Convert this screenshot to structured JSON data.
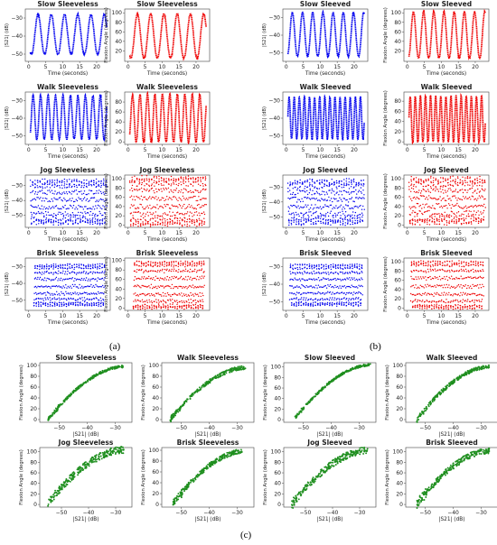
{
  "panel_labels": [
    "(a)",
    "(b)",
    "(c)"
  ],
  "series_colors": {
    "s21": "#0000ee",
    "flexion": "#ee0000",
    "scatter": "#1f8f1f"
  },
  "chart_data": [
    {
      "type": "line",
      "group": "a",
      "row": 0,
      "col": 0,
      "title": "Slow Sleeveless",
      "xlabel": "Time (seconds)",
      "ylabel": "|S21| (dB)",
      "xticks": [
        0,
        5,
        10,
        15,
        20
      ],
      "yticks": [
        -50,
        -40,
        -30
      ],
      "xlim": [
        -1,
        24
      ],
      "ylim": [
        -54,
        -25
      ],
      "period": 3.9,
      "phase": 0.8,
      "noise": 0.2,
      "t_end": 23,
      "series": [
        {
          "signal": "s21",
          "ymin": -50,
          "ymax": -28
        }
      ]
    },
    {
      "type": "line",
      "group": "a",
      "row": 0,
      "col": 1,
      "title": "Slow Sleeveless",
      "xlabel": "Time (seconds)",
      "ylabel": "Flexion Angle (degrees)",
      "xticks": [
        0,
        5,
        10,
        15,
        20
      ],
      "yticks": [
        20,
        40,
        60,
        80,
        100
      ],
      "xlim": [
        -1,
        24
      ],
      "ylim": [
        -2,
        108
      ],
      "period": 3.9,
      "phase": 0.8,
      "noise": 0.2,
      "t_end": 23,
      "series": [
        {
          "signal": "flexion",
          "ymin": 5,
          "ymax": 98
        }
      ]
    },
    {
      "type": "line",
      "group": "b",
      "row": 0,
      "col": 0,
      "title": "Slow Sleeved",
      "xlabel": "Time (seconds)",
      "ylabel": "|S21| (dB)",
      "xticks": [
        0,
        5,
        10,
        15,
        20
      ],
      "yticks": [
        -50,
        -40,
        -30
      ],
      "xlim": [
        -1,
        24
      ],
      "ylim": [
        -55,
        -25
      ],
      "period": 3.0,
      "phase": 0.3,
      "noise": 0.2,
      "t_end": 23,
      "series": [
        {
          "signal": "s21",
          "ymin": -52,
          "ymax": -27
        }
      ]
    },
    {
      "type": "line",
      "group": "b",
      "row": 0,
      "col": 1,
      "title": "Slow Sleeved",
      "xlabel": "Time (seconds)",
      "ylabel": "Flexion Angle (degrees)",
      "xticks": [
        0,
        5,
        10,
        15,
        20
      ],
      "yticks": [
        20,
        40,
        60,
        80,
        100
      ],
      "xlim": [
        -1,
        24
      ],
      "ylim": [
        -2,
        108
      ],
      "period": 3.0,
      "phase": 0.3,
      "noise": 0.2,
      "t_end": 23,
      "series": [
        {
          "signal": "flexion",
          "ymin": 5,
          "ymax": 102
        }
      ]
    },
    {
      "type": "line",
      "group": "a",
      "row": 1,
      "col": 0,
      "title": "Walk Sleeveless",
      "xlabel": "Time (seconds)",
      "ylabel": "|S21| (dB)",
      "xticks": [
        0,
        5,
        10,
        15,
        20
      ],
      "yticks": [
        -50,
        -40,
        -30
      ],
      "xlim": [
        -1,
        24
      ],
      "ylim": [
        -55,
        -25
      ],
      "period": 2.2,
      "phase": 0.2,
      "noise": 0.3,
      "t_end": 23,
      "series": [
        {
          "signal": "s21",
          "ymin": -52,
          "ymax": -27
        }
      ]
    },
    {
      "type": "line",
      "group": "a",
      "row": 1,
      "col": 1,
      "title": "Walk Sleeveless",
      "xlabel": "Time (seconds)",
      "ylabel": "Flexion Angle (degrees)",
      "xticks": [
        0,
        5,
        10,
        15,
        20
      ],
      "yticks": [
        0,
        20,
        40,
        60,
        80
      ],
      "xlim": [
        -1,
        24
      ],
      "ylim": [
        -5,
        100
      ],
      "period": 2.2,
      "phase": 0.2,
      "noise": 0.3,
      "t_end": 23,
      "series": [
        {
          "signal": "flexion",
          "ymin": 0,
          "ymax": 95
        }
      ]
    },
    {
      "type": "line",
      "group": "b",
      "row": 1,
      "col": 0,
      "title": "Walk Sleeved",
      "xlabel": "Time (seconds)",
      "ylabel": "|S21| (dB)",
      "xticks": [
        0,
        5,
        10,
        15,
        20
      ],
      "yticks": [
        -50,
        -40,
        -30
      ],
      "xlim": [
        -1,
        24
      ],
      "ylim": [
        -55,
        -25
      ],
      "period": 1.5,
      "phase": 0.1,
      "noise": 0.3,
      "t_end": 23,
      "series": [
        {
          "signal": "s21",
          "ymin": -52,
          "ymax": -28
        }
      ]
    },
    {
      "type": "line",
      "group": "b",
      "row": 1,
      "col": 1,
      "title": "Walk Sleeved",
      "xlabel": "Time (seconds)",
      "ylabel": "Flexion Angle (degrees)",
      "xticks": [
        0,
        5,
        10,
        15,
        20
      ],
      "yticks": [
        0,
        20,
        40,
        60,
        80
      ],
      "xlim": [
        -1,
        24
      ],
      "ylim": [
        -5,
        98
      ],
      "period": 1.5,
      "phase": 0.1,
      "noise": 0.3,
      "t_end": 23,
      "series": [
        {
          "signal": "flexion",
          "ymin": 0,
          "ymax": 90
        }
      ]
    },
    {
      "type": "line",
      "group": "a",
      "row": 2,
      "col": 0,
      "title": "Jog Sleeveless",
      "xlabel": "Time (seconds)",
      "ylabel": "|S21| (dB)",
      "xticks": [
        0,
        5,
        10,
        15,
        20
      ],
      "yticks": [
        -50,
        -40,
        -30
      ],
      "xlim": [
        -1,
        24
      ],
      "ylim": [
        -58,
        -23
      ],
      "period": 0.72,
      "phase": 0.1,
      "noise": 0.7,
      "t_end": 23,
      "series": [
        {
          "signal": "s21",
          "ymin": -55,
          "ymax": -27
        }
      ]
    },
    {
      "type": "line",
      "group": "a",
      "row": 2,
      "col": 1,
      "title": "Jog Sleeveless",
      "xlabel": "Time (seconds)",
      "ylabel": "Flexion Angle (degrees)",
      "xticks": [
        0,
        5,
        10,
        15,
        20
      ],
      "yticks": [
        0,
        20,
        40,
        60,
        80,
        100
      ],
      "xlim": [
        -1,
        24
      ],
      "ylim": [
        -5,
        108
      ],
      "period": 0.72,
      "phase": 0.1,
      "noise": 0.7,
      "t_end": 23,
      "series": [
        {
          "signal": "flexion",
          "ymin": 2,
          "ymax": 102
        }
      ]
    },
    {
      "type": "line",
      "group": "b",
      "row": 2,
      "col": 0,
      "title": "Jog Sleeved",
      "xlabel": "Time (seconds)",
      "ylabel": "|S21| (dB)",
      "xticks": [
        0,
        5,
        10,
        15,
        20
      ],
      "yticks": [
        -50,
        -40,
        -30
      ],
      "xlim": [
        -1,
        24
      ],
      "ylim": [
        -57,
        -22
      ],
      "period": 0.72,
      "phase": 0.1,
      "noise": 0.8,
      "t_end": 23,
      "series": [
        {
          "signal": "s21",
          "ymin": -54,
          "ymax": -26
        }
      ]
    },
    {
      "type": "line",
      "group": "b",
      "row": 2,
      "col": 1,
      "title": "Jog Sleeved",
      "xlabel": "Time (seconds)",
      "ylabel": "Flexion Angle (degrees)",
      "xticks": [
        0,
        5,
        10,
        15,
        20
      ],
      "yticks": [
        0,
        20,
        40,
        60,
        80,
        100
      ],
      "xlim": [
        -1,
        24
      ],
      "ylim": [
        -5,
        108
      ],
      "period": 0.72,
      "phase": 0.1,
      "noise": 0.8,
      "t_end": 23,
      "series": [
        {
          "signal": "flexion",
          "ymin": 5,
          "ymax": 100
        }
      ]
    },
    {
      "type": "line",
      "group": "a",
      "row": 3,
      "col": 0,
      "title": "Brisk Sleeveless",
      "xlabel": "Time (seconds)",
      "ylabel": "|S21| (dB)",
      "xticks": [
        0,
        5,
        10,
        15,
        20
      ],
      "yticks": [
        -50,
        -40,
        -30
      ],
      "xlim": [
        -1,
        24
      ],
      "ylim": [
        -56,
        -25
      ],
      "period": 0.68,
      "phase": 0.2,
      "noise": 0.4,
      "t_start": 1.5,
      "t_end": 22.5,
      "series": [
        {
          "signal": "s21",
          "ymin": -53,
          "ymax": -29
        }
      ]
    },
    {
      "type": "line",
      "group": "a",
      "row": 3,
      "col": 1,
      "title": "Brisk Sleeveless",
      "xlabel": "Time (seconds)",
      "ylabel": "Flexion Angle (degrees)",
      "xticks": [
        0,
        5,
        10,
        15,
        20
      ],
      "yticks": [
        0,
        20,
        40,
        60,
        80,
        100
      ],
      "xlim": [
        -1,
        24
      ],
      "ylim": [
        -5,
        105
      ],
      "period": 0.68,
      "phase": 0.2,
      "noise": 0.4,
      "t_start": 1.5,
      "t_end": 22.5,
      "series": [
        {
          "signal": "flexion",
          "ymin": 0,
          "ymax": 97
        }
      ]
    },
    {
      "type": "line",
      "group": "b",
      "row": 3,
      "col": 0,
      "title": "Brisk Sleeved",
      "xlabel": "Time (seconds)",
      "ylabel": "|S21| (dB)",
      "xticks": [
        0,
        5,
        10,
        15,
        20
      ],
      "yticks": [
        -50,
        -40,
        -30
      ],
      "xlim": [
        -1,
        24
      ],
      "ylim": [
        -55,
        -25
      ],
      "period": 0.7,
      "phase": 0.2,
      "noise": 0.4,
      "t_start": 1.0,
      "t_end": 22.5,
      "series": [
        {
          "signal": "s21",
          "ymin": -52,
          "ymax": -29
        }
      ]
    },
    {
      "type": "line",
      "group": "b",
      "row": 3,
      "col": 1,
      "title": "Brisk Sleeved",
      "xlabel": "Time (seconds)",
      "ylabel": "Flexion Angle (degrees)",
      "xticks": [
        0,
        5,
        10,
        15,
        20
      ],
      "yticks": [
        0,
        20,
        40,
        60,
        80,
        100
      ],
      "xlim": [
        -1,
        24
      ],
      "ylim": [
        -5,
        108
      ],
      "period": 0.7,
      "phase": 0.2,
      "noise": 0.4,
      "t_start": 1.0,
      "t_end": 22.5,
      "series": [
        {
          "signal": "flexion",
          "ymin": 0,
          "ymax": 100
        }
      ]
    },
    {
      "type": "scatter",
      "group": "c",
      "row": 0,
      "col": 0,
      "title": "Slow Sleeveless",
      "xlabel": "|S21| (dB)",
      "ylabel": "Flexion Angle (degrees)",
      "xticks": [
        -50,
        -40,
        -30
      ],
      "yticks": [
        0,
        20,
        40,
        60,
        80,
        100
      ],
      "xlim": [
        -57,
        -24
      ],
      "ylim": [
        -5,
        105
      ],
      "x_range": [
        -54,
        -27
      ],
      "y_range": [
        0,
        98
      ],
      "curve": 0.55,
      "spread": 2
    },
    {
      "type": "scatter",
      "group": "c",
      "row": 0,
      "col": 1,
      "title": "Walk Sleeveless",
      "xlabel": "|S21| (dB)",
      "ylabel": "Flexion Angle (degrees)",
      "xticks": [
        -50,
        -40,
        -30
      ],
      "yticks": [
        0,
        20,
        40,
        60,
        80,
        100
      ],
      "xlim": [
        -57,
        -24
      ],
      "ylim": [
        -5,
        105
      ],
      "x_range": [
        -54,
        -27
      ],
      "y_range": [
        0,
        96
      ],
      "curve": 0.55,
      "spread": 3
    },
    {
      "type": "scatter",
      "group": "c",
      "row": 0,
      "col": 2,
      "title": "Slow Sleeved",
      "xlabel": "|S21| (dB)",
      "ylabel": "Flexion Angle (degrees)",
      "xticks": [
        -50,
        -40,
        -30
      ],
      "yticks": [
        0,
        20,
        40,
        60,
        80,
        100
      ],
      "xlim": [
        -57,
        -24
      ],
      "ylim": [
        -5,
        108
      ],
      "x_range": [
        -53,
        -26
      ],
      "y_range": [
        2,
        104
      ],
      "curve": 0.6,
      "spread": 2
    },
    {
      "type": "scatter",
      "group": "c",
      "row": 0,
      "col": 3,
      "title": "Walk Sleeved",
      "xlabel": "|S21| (dB)",
      "ylabel": "Flexion Angle (degrees)",
      "xticks": [
        -50,
        -40,
        -30
      ],
      "yticks": [
        0,
        20,
        40,
        60,
        80,
        100
      ],
      "xlim": [
        -57,
        -24
      ],
      "ylim": [
        -5,
        105
      ],
      "x_range": [
        -53,
        -27
      ],
      "y_range": [
        0,
        98
      ],
      "curve": 0.6,
      "spread": 3
    },
    {
      "type": "scatter",
      "group": "c",
      "row": 1,
      "col": 0,
      "title": "Jog Sleeveless",
      "xlabel": "|S21| (dB)",
      "ylabel": "Flexion Angle (degrees)",
      "xticks": [
        -50,
        -40,
        -30
      ],
      "yticks": [
        0,
        20,
        40,
        60,
        80,
        100
      ],
      "xlim": [
        -58,
        -24
      ],
      "ylim": [
        -5,
        108
      ],
      "x_range": [
        -55,
        -27
      ],
      "y_range": [
        2,
        104
      ],
      "curve": 0.45,
      "spread": 6
    },
    {
      "type": "scatter",
      "group": "c",
      "row": 1,
      "col": 1,
      "title": "Brisk Sleeveless",
      "xlabel": "|S21| (dB)",
      "ylabel": "Flexion Angle (degrees)",
      "xticks": [
        -50,
        -40,
        -30
      ],
      "yticks": [
        0,
        20,
        40,
        60,
        80,
        100
      ],
      "xlim": [
        -57,
        -24
      ],
      "ylim": [
        -5,
        105
      ],
      "x_range": [
        -53,
        -28
      ],
      "y_range": [
        0,
        98
      ],
      "curve": 0.5,
      "spread": 4
    },
    {
      "type": "scatter",
      "group": "c",
      "row": 1,
      "col": 2,
      "title": "Jog Sleeved",
      "xlabel": "|S21| (dB)",
      "ylabel": "Flexion Angle (degrees)",
      "xticks": [
        -50,
        -40,
        -30
      ],
      "yticks": [
        0,
        20,
        40,
        60,
        80,
        100
      ],
      "xlim": [
        -58,
        -24
      ],
      "ylim": [
        -5,
        108
      ],
      "x_range": [
        -55,
        -27
      ],
      "y_range": [
        0,
        103
      ],
      "curve": 0.4,
      "spread": 6
    },
    {
      "type": "scatter",
      "group": "c",
      "row": 1,
      "col": 3,
      "title": "Brisk Sleeved",
      "xlabel": "|S21| (dB)",
      "ylabel": "Flexion Angle (degrees)",
      "xticks": [
        -50,
        -40,
        -30
      ],
      "yticks": [
        0,
        20,
        40,
        60,
        80,
        100
      ],
      "xlim": [
        -57,
        -24
      ],
      "ylim": [
        -5,
        108
      ],
      "x_range": [
        -53,
        -27
      ],
      "y_range": [
        0,
        102
      ],
      "curve": 0.5,
      "spread": 5
    }
  ]
}
